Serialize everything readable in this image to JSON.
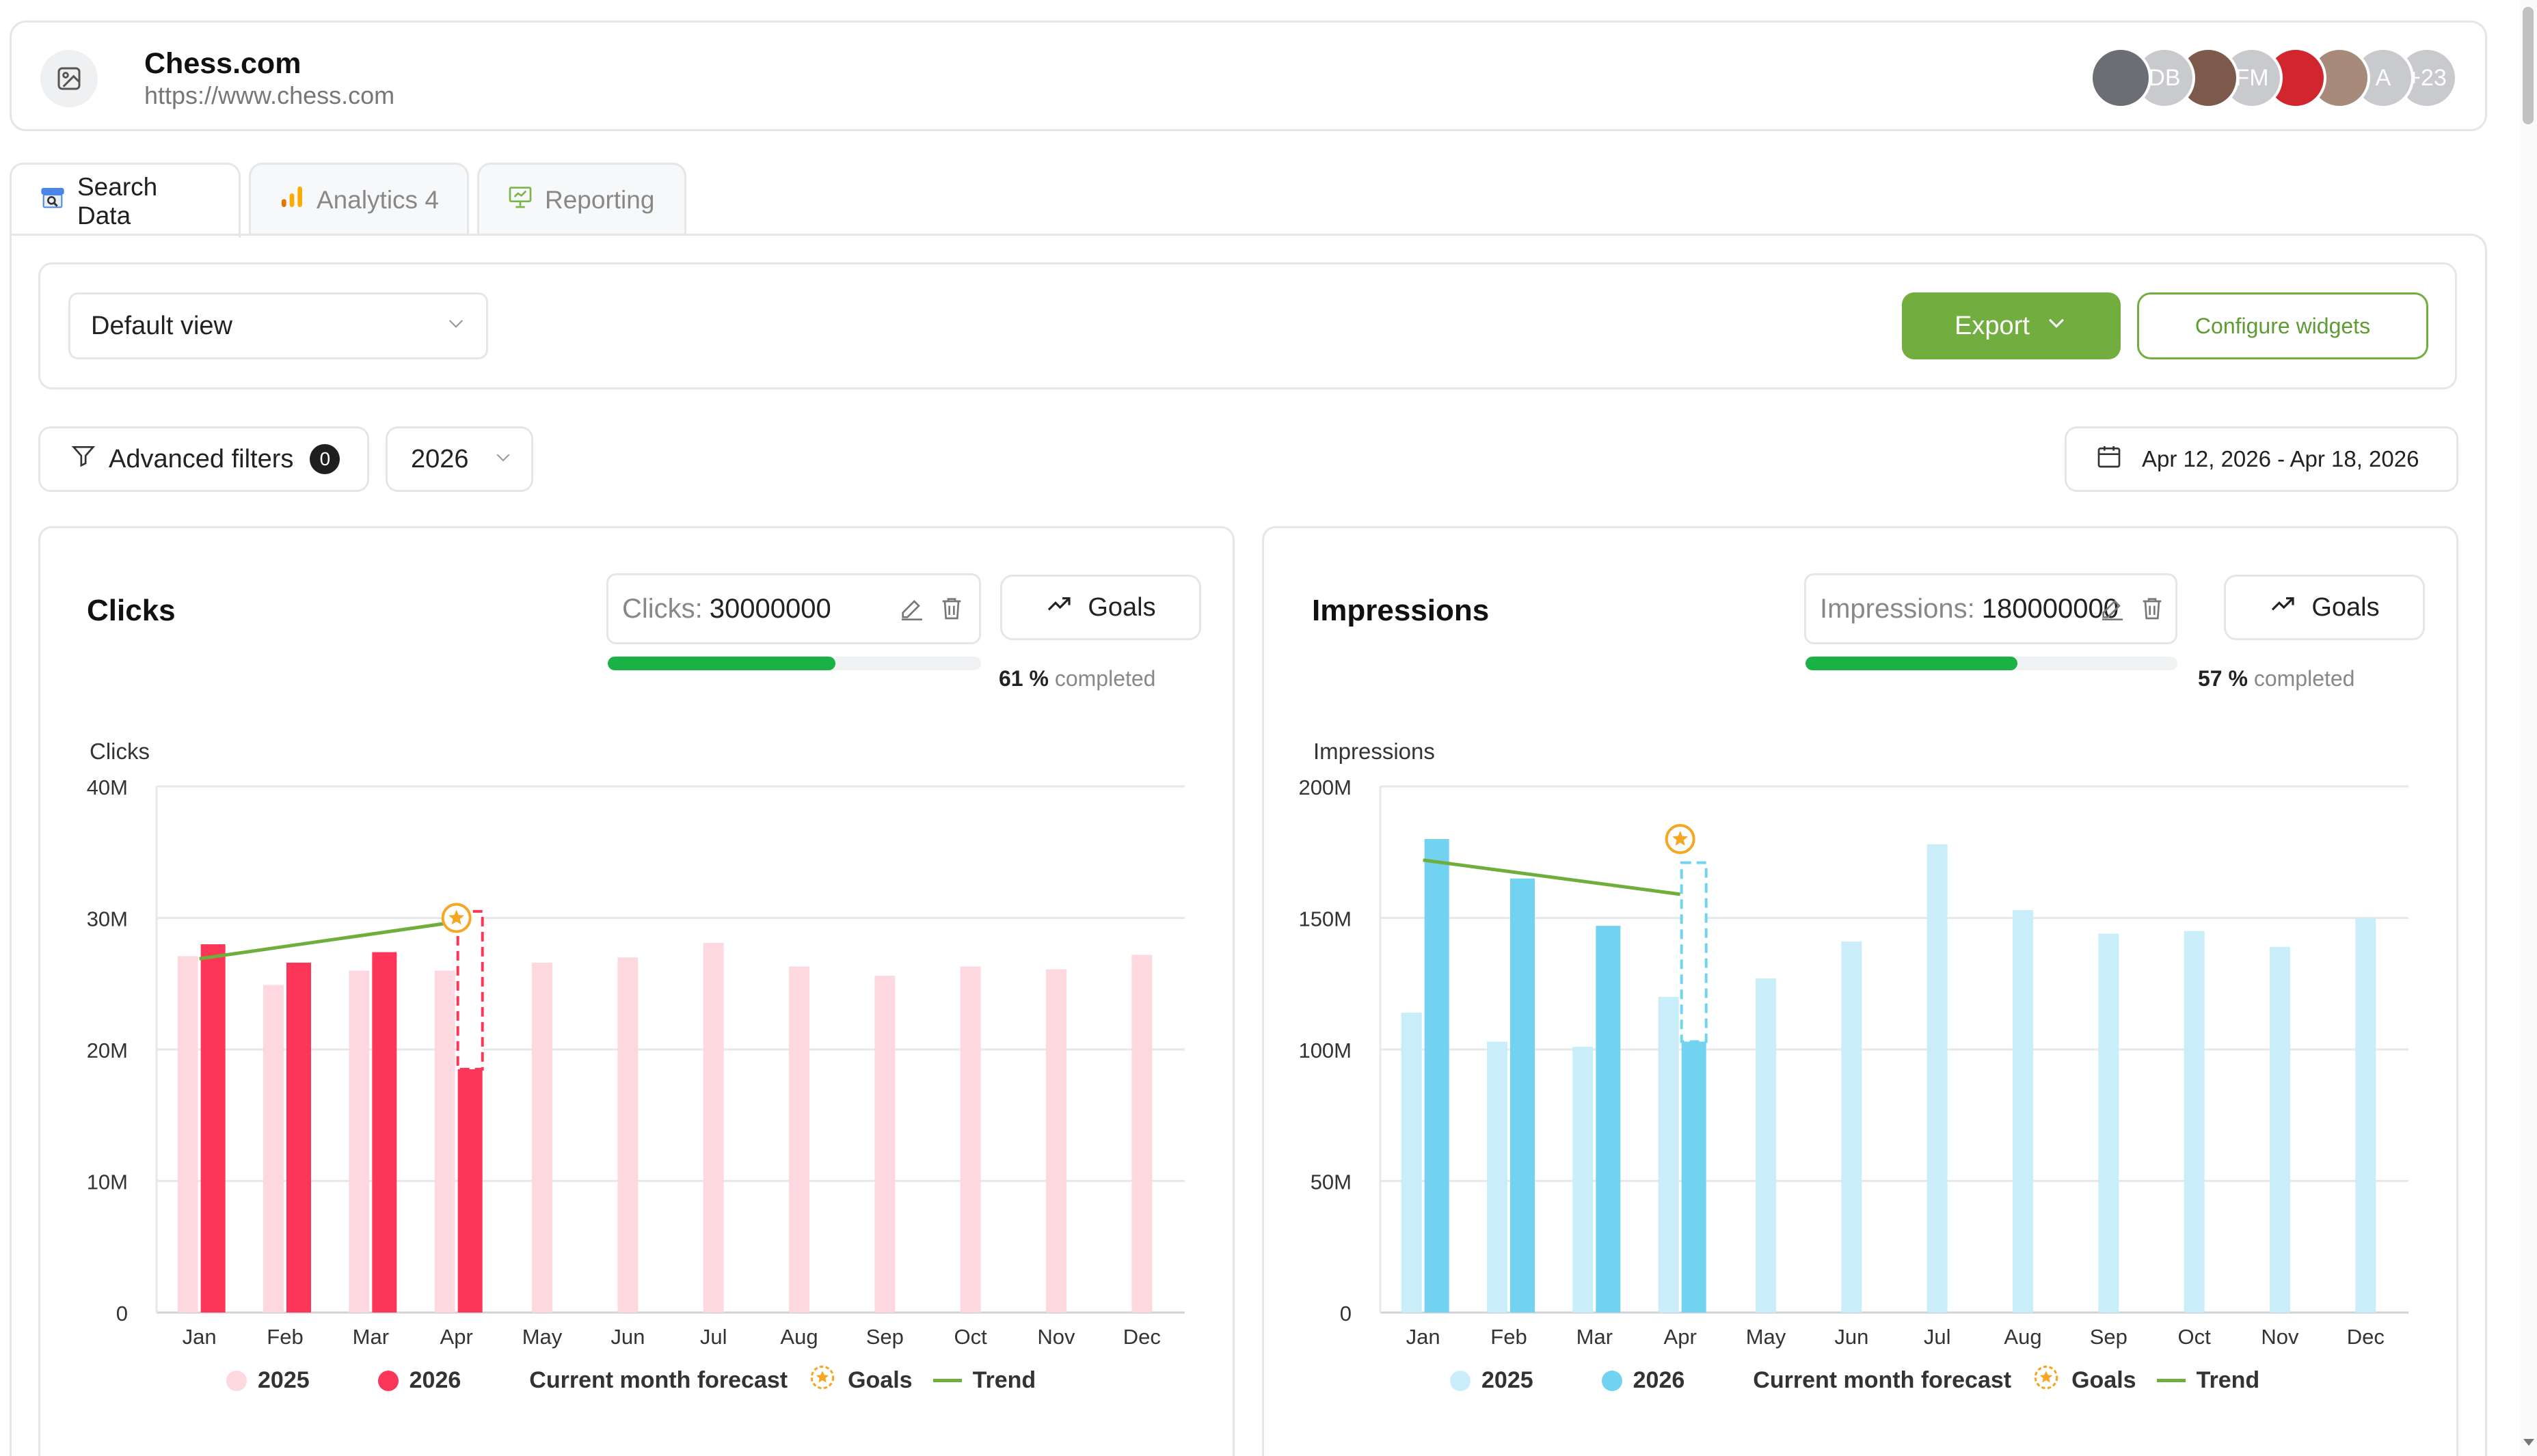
{
  "site": {
    "name": "Chess.com",
    "url": "https://www.chess.com",
    "avatars": [
      {
        "kind": "photo",
        "label": ""
      },
      {
        "kind": "initials",
        "label": "DB"
      },
      {
        "kind": "photo",
        "label": ""
      },
      {
        "kind": "initials",
        "label": "FM"
      },
      {
        "kind": "photo",
        "label": ""
      },
      {
        "kind": "photo",
        "label": ""
      },
      {
        "kind": "initials",
        "label": "A"
      },
      {
        "kind": "initials",
        "label": "+23"
      }
    ]
  },
  "tabs": [
    {
      "label": "Search Data",
      "icon": "search-console-icon",
      "active": true
    },
    {
      "label": "Analytics 4",
      "icon": "analytics-bar-icon",
      "active": false
    },
    {
      "label": "Reporting",
      "icon": "presentation-icon",
      "active": false
    }
  ],
  "toolbar": {
    "view_label": "Default view",
    "export_label": "Export",
    "configure_label": "Configure widgets"
  },
  "filters": {
    "advanced_label": "Advanced filters",
    "advanced_count": "0",
    "year": "2026",
    "date_range": "Apr 12, 2026 - Apr 18, 2026"
  },
  "colors": {
    "accent_green": "#72ad3f",
    "progress_green": "#19b245",
    "clicks_2025": "#fdd9df",
    "clicks_2026": "#fc3658",
    "impressions_2025": "#c9eefa",
    "impressions_2026": "#72d3f0",
    "trend": "#6fae3a",
    "goal_star": "#f5a623"
  },
  "cards": {
    "clicks": {
      "title": "Clicks",
      "goal_label": "Clicks:",
      "goal_value": "30000000",
      "goals_button": "Goals",
      "progress_percent": 61,
      "completed_value": "61 %",
      "completed_text": "completed"
    },
    "impressions": {
      "title": "Impressions",
      "goal_label": "Impressions:",
      "goal_value": "180000000",
      "goals_button": "Goals",
      "progress_percent": 57,
      "completed_value": "57 %",
      "completed_text": "completed"
    }
  },
  "legend": {
    "y2025": "2025",
    "y2026": "2026",
    "forecast": "Current month forecast",
    "goals": "Goals",
    "trend": "Trend"
  },
  "chart_data": [
    {
      "type": "bar",
      "title": "Clicks",
      "ylabel": "Clicks",
      "categories": [
        "Jan",
        "Feb",
        "Mar",
        "Apr",
        "May",
        "Jun",
        "Jul",
        "Aug",
        "Sep",
        "Oct",
        "Nov",
        "Dec"
      ],
      "ylim": [
        0,
        40000000
      ],
      "yticks": [
        "0",
        "10M",
        "20M",
        "30M",
        "40M"
      ],
      "series": [
        {
          "name": "2025",
          "values": [
            27100000,
            24900000,
            26000000,
            26000000,
            26600000,
            27000000,
            28100000,
            26300000,
            25600000,
            26300000,
            26100000,
            27200000
          ]
        },
        {
          "name": "2026",
          "values": [
            28000000,
            26600000,
            27400000,
            18500000,
            null,
            null,
            null,
            null,
            null,
            null,
            null,
            null
          ]
        }
      ],
      "forecast": {
        "category": "Apr",
        "value": 30500000
      },
      "goal": {
        "category": "Apr",
        "value": 30000000
      },
      "trend": {
        "from": {
          "category": "Jan",
          "value": 26900000
        },
        "to": {
          "category": "Apr",
          "value": 29700000
        }
      },
      "grid": true,
      "legend": "bottom"
    },
    {
      "type": "bar",
      "title": "Impressions",
      "ylabel": "Impressions",
      "categories": [
        "Jan",
        "Feb",
        "Mar",
        "Apr",
        "May",
        "Jun",
        "Jul",
        "Aug",
        "Sep",
        "Oct",
        "Nov",
        "Dec"
      ],
      "ylim": [
        0,
        200000000
      ],
      "yticks": [
        "0",
        "50M",
        "100M",
        "150M",
        "200M"
      ],
      "series": [
        {
          "name": "2025",
          "values": [
            114000000,
            103000000,
            101000000,
            120000000,
            127000000,
            141000000,
            178000000,
            153000000,
            144000000,
            145000000,
            139000000,
            150000000
          ]
        },
        {
          "name": "2026",
          "values": [
            180000000,
            165000000,
            147000000,
            103000000,
            null,
            null,
            null,
            null,
            null,
            null,
            null,
            null
          ]
        }
      ],
      "forecast": {
        "category": "Apr",
        "value": 171000000
      },
      "goal": {
        "category": "Apr",
        "value": 180000000
      },
      "trend": {
        "from": {
          "category": "Jan",
          "value": 172000000
        },
        "to": {
          "category": "Apr",
          "value": 159000000
        }
      },
      "grid": true,
      "legend": "bottom"
    }
  ]
}
